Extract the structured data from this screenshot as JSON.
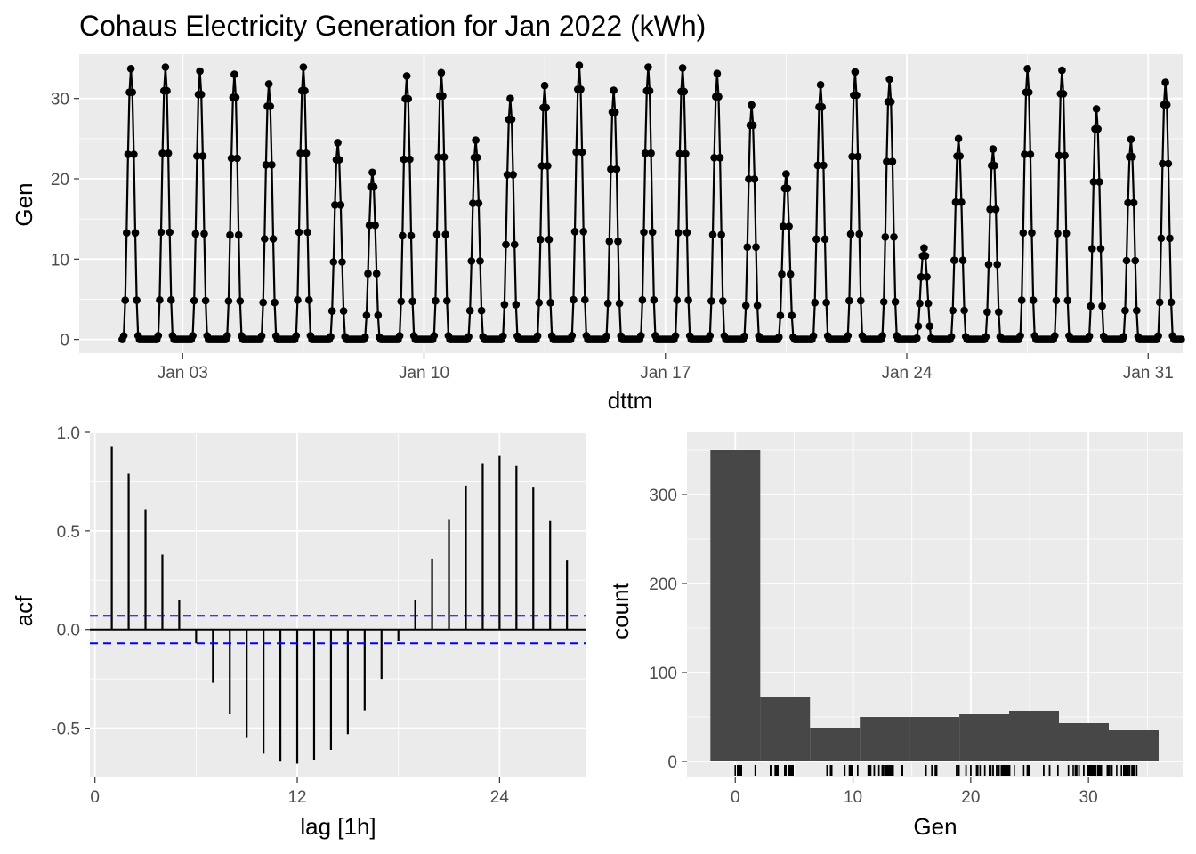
{
  "colors": {
    "panel_bg": "#ebebeb",
    "grid_major": "#ffffff",
    "tick_text": "#4d4d4d",
    "ink": "#000000",
    "bar_fill": "#474747",
    "ci_line": "#0000ff"
  },
  "chart_data": [
    {
      "type": "line",
      "id": "timeseries",
      "title": "Cohaus Electricity Generation for Jan 2022 (kWh)",
      "xlabel": "dttm",
      "ylabel": "Gen",
      "x_unit": "day of January 2022 (fractional)",
      "x_ticks": [
        {
          "label": "Jan 03",
          "x": 3
        },
        {
          "label": "Jan 10",
          "x": 10
        },
        {
          "label": "Jan 17",
          "x": 17
        },
        {
          "label": "Jan 24",
          "x": 24
        },
        {
          "label": "Jan 31",
          "x": 31
        }
      ],
      "xlim": [
        0,
        32
      ],
      "y_ticks": [
        0,
        10,
        20,
        30
      ],
      "ylim": [
        -1.7,
        35.5
      ],
      "markers": "points",
      "daily_peaks": [
        {
          "day": 1,
          "peak": 33.7
        },
        {
          "day": 2,
          "peak": 33.9
        },
        {
          "day": 3,
          "peak": 33.4
        },
        {
          "day": 4,
          "peak": 33.0
        },
        {
          "day": 5,
          "peak": 31.8
        },
        {
          "day": 6,
          "peak": 33.9
        },
        {
          "day": 7,
          "peak": 24.5
        },
        {
          "day": 8,
          "peak": 20.8
        },
        {
          "day": 9,
          "peak": 32.8
        },
        {
          "day": 10,
          "peak": 33.2
        },
        {
          "day": 11,
          "peak": 24.8
        },
        {
          "day": 12,
          "peak": 30.0
        },
        {
          "day": 13,
          "peak": 31.6
        },
        {
          "day": 14,
          "peak": 34.1
        },
        {
          "day": 15,
          "peak": 31.0
        },
        {
          "day": 16,
          "peak": 33.9
        },
        {
          "day": 17,
          "peak": 33.8
        },
        {
          "day": 18,
          "peak": 33.1
        },
        {
          "day": 19,
          "peak": 29.2
        },
        {
          "day": 20,
          "peak": 20.6
        },
        {
          "day": 21,
          "peak": 31.7
        },
        {
          "day": 22,
          "peak": 33.3
        },
        {
          "day": 23,
          "peak": 32.4
        },
        {
          "day": 24,
          "peak": 11.4
        },
        {
          "day": 25,
          "peak": 25.0
        },
        {
          "day": 26,
          "peak": 23.7
        },
        {
          "day": 27,
          "peak": 33.7
        },
        {
          "day": 28,
          "peak": 33.5
        },
        {
          "day": 29,
          "peak": 28.7
        },
        {
          "day": 30,
          "peak": 24.9
        },
        {
          "day": 31,
          "peak": 32.0
        }
      ]
    },
    {
      "type": "bar",
      "id": "acf",
      "xlabel": "lag [1h]",
      "ylabel": "acf",
      "x_ticks": [
        0,
        12,
        24
      ],
      "xlim": [
        -0.3,
        29.1
      ],
      "y_ticks": [
        -0.5,
        0.0,
        0.5,
        1.0
      ],
      "y_tick_labels": [
        "-0.5",
        "0.0",
        "0.5",
        "1.0"
      ],
      "ylim": [
        -0.75,
        1.0
      ],
      "lags": [
        1,
        2,
        3,
        4,
        5,
        6,
        7,
        8,
        9,
        10,
        11,
        12,
        13,
        14,
        15,
        16,
        17,
        18,
        19,
        20,
        21,
        22,
        23,
        24,
        25,
        26,
        27,
        28
      ],
      "values": [
        0.93,
        0.79,
        0.61,
        0.38,
        0.15,
        -0.07,
        -0.27,
        -0.43,
        -0.55,
        -0.63,
        -0.67,
        -0.68,
        -0.66,
        -0.61,
        -0.53,
        -0.41,
        -0.25,
        -0.06,
        0.15,
        0.36,
        0.56,
        0.73,
        0.84,
        0.88,
        0.83,
        0.72,
        0.55,
        0.35
      ],
      "confidence_band": 0.07
    },
    {
      "type": "bar",
      "id": "histogram",
      "xlabel": "Gen",
      "ylabel": "count",
      "x_ticks": [
        0,
        10,
        20,
        30
      ],
      "xlim": [
        -4.1,
        38.0
      ],
      "y_ticks": [
        0,
        100,
        200,
        300
      ],
      "ylim": [
        -18,
        370
      ],
      "bin_width": 4.23,
      "bins": [
        {
          "center": 0.0,
          "count": 350
        },
        {
          "center": 4.23,
          "count": 73
        },
        {
          "center": 8.46,
          "count": 38
        },
        {
          "center": 12.69,
          "count": 50
        },
        {
          "center": 16.92,
          "count": 50
        },
        {
          "center": 21.15,
          "count": 53
        },
        {
          "center": 25.38,
          "count": 57
        },
        {
          "center": 29.61,
          "count": 43
        },
        {
          "center": 33.84,
          "count": 35
        }
      ],
      "rug": "observed Gen values"
    }
  ]
}
